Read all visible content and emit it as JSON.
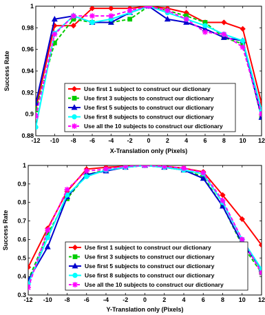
{
  "chart_data": [
    {
      "type": "line",
      "title": "",
      "xlabel": "X-Translation only (Pixels)",
      "ylabel": "Success Rate",
      "xlim": [
        -12,
        12
      ],
      "ylim": [
        0.88,
        1.0
      ],
      "xticks": [
        "-12",
        "-10",
        "-8",
        "-6",
        "-4",
        "-2",
        "0",
        "2",
        "4",
        "6",
        "8",
        "10",
        "12"
      ],
      "yticks": [
        "0.88",
        "0.9",
        "0.92",
        "0.94",
        "0.96",
        "0.98",
        "1"
      ],
      "legend_position": "lower-center",
      "x": [
        -12,
        -10,
        -8,
        -6,
        -4,
        -2,
        0,
        2,
        4,
        6,
        8,
        10,
        12
      ],
      "series": [
        {
          "name": "Use first 1 subject to construct our dictionary",
          "color": "#ff0000",
          "marker": "diamond",
          "dash": "solid",
          "values": [
            0.905,
            0.982,
            0.982,
            0.998,
            0.998,
            0.998,
            1.0,
            0.998,
            0.994,
            0.985,
            0.985,
            0.979,
            0.91
          ]
        },
        {
          "name": "Use first 3 subjects to construct our dictionary",
          "color": "#00cc00",
          "marker": "square",
          "dash": "dashed",
          "values": [
            0.904,
            0.966,
            0.988,
            0.985,
            0.985,
            0.988,
            1.0,
            0.996,
            0.991,
            0.985,
            0.971,
            0.965,
            0.897
          ]
        },
        {
          "name": "Use first 5 subjects to construct our dictionary",
          "color": "#0000cc",
          "marker": "triangle",
          "dash": "solid",
          "values": [
            0.91,
            0.988,
            0.991,
            0.985,
            0.985,
            0.994,
            1.0,
            0.988,
            0.985,
            0.979,
            0.971,
            0.968,
            0.897
          ]
        },
        {
          "name": "Use first 8 subjects to construct our dictionary",
          "color": "#00ffff",
          "marker": "circle",
          "dash": "solid",
          "values": [
            0.888,
            0.975,
            0.991,
            0.985,
            0.988,
            0.994,
            1.0,
            0.994,
            0.988,
            0.982,
            0.974,
            0.968,
            0.904
          ]
        },
        {
          "name": "Use all the 10 subjects to construct our dictionary",
          "color": "#ff00ff",
          "marker": "star",
          "dash": "dashed",
          "values": [
            0.898,
            0.974,
            0.991,
            0.991,
            0.991,
            0.996,
            1.0,
            0.996,
            0.988,
            0.976,
            0.974,
            0.962,
            0.9
          ]
        }
      ]
    },
    {
      "type": "line",
      "title": "",
      "xlabel": "Y-Translation only (Pixels)",
      "ylabel": "Success Rate",
      "xlim": [
        -12,
        12
      ],
      "ylim": [
        0.3,
        1.0
      ],
      "xticks": [
        "-12",
        "-10",
        "-8",
        "-6",
        "-4",
        "-2",
        "0",
        "2",
        "4",
        "6",
        "8",
        "10",
        "12"
      ],
      "yticks": [
        "0.3",
        "0.4",
        "0.5",
        "0.6",
        "0.7",
        "0.8",
        "0.9",
        "1"
      ],
      "legend_position": "lower-center",
      "x": [
        -12,
        -10,
        -8,
        -6,
        -4,
        -2,
        0,
        2,
        4,
        6,
        8,
        10,
        12
      ],
      "series": [
        {
          "name": "Use first 1 subject to construct our dictionary",
          "color": "#ff0000",
          "marker": "diamond",
          "dash": "solid",
          "values": [
            0.45,
            0.66,
            0.86,
            0.98,
            0.99,
            0.995,
            1.0,
            0.995,
            0.985,
            0.965,
            0.84,
            0.71,
            0.57
          ]
        },
        {
          "name": "Use first 3 subjects to construct our dictionary",
          "color": "#00cc00",
          "marker": "square",
          "dash": "dashed",
          "values": [
            0.38,
            0.63,
            0.82,
            0.95,
            0.975,
            0.99,
            1.0,
            0.99,
            0.975,
            0.94,
            0.78,
            0.57,
            0.42
          ]
        },
        {
          "name": "Use first 5 subjects to construct our dictionary",
          "color": "#0000cc",
          "marker": "triangle",
          "dash": "solid",
          "values": [
            0.38,
            0.56,
            0.83,
            0.95,
            0.97,
            0.99,
            1.0,
            0.99,
            0.975,
            0.93,
            0.78,
            0.58,
            0.44
          ]
        },
        {
          "name": "Use first 8 subjects to construct our dictionary",
          "color": "#00ffff",
          "marker": "circle",
          "dash": "solid",
          "values": [
            0.36,
            0.61,
            0.84,
            0.94,
            0.975,
            0.99,
            1.0,
            0.99,
            0.975,
            0.955,
            0.8,
            0.6,
            0.44
          ]
        },
        {
          "name": "Use all the 10 subjects to construct our dictionary",
          "color": "#ff00ff",
          "marker": "star",
          "dash": "dashed",
          "values": [
            0.34,
            0.65,
            0.87,
            0.97,
            0.98,
            0.995,
            1.0,
            0.995,
            0.985,
            0.96,
            0.81,
            0.6,
            0.42
          ]
        }
      ]
    }
  ]
}
